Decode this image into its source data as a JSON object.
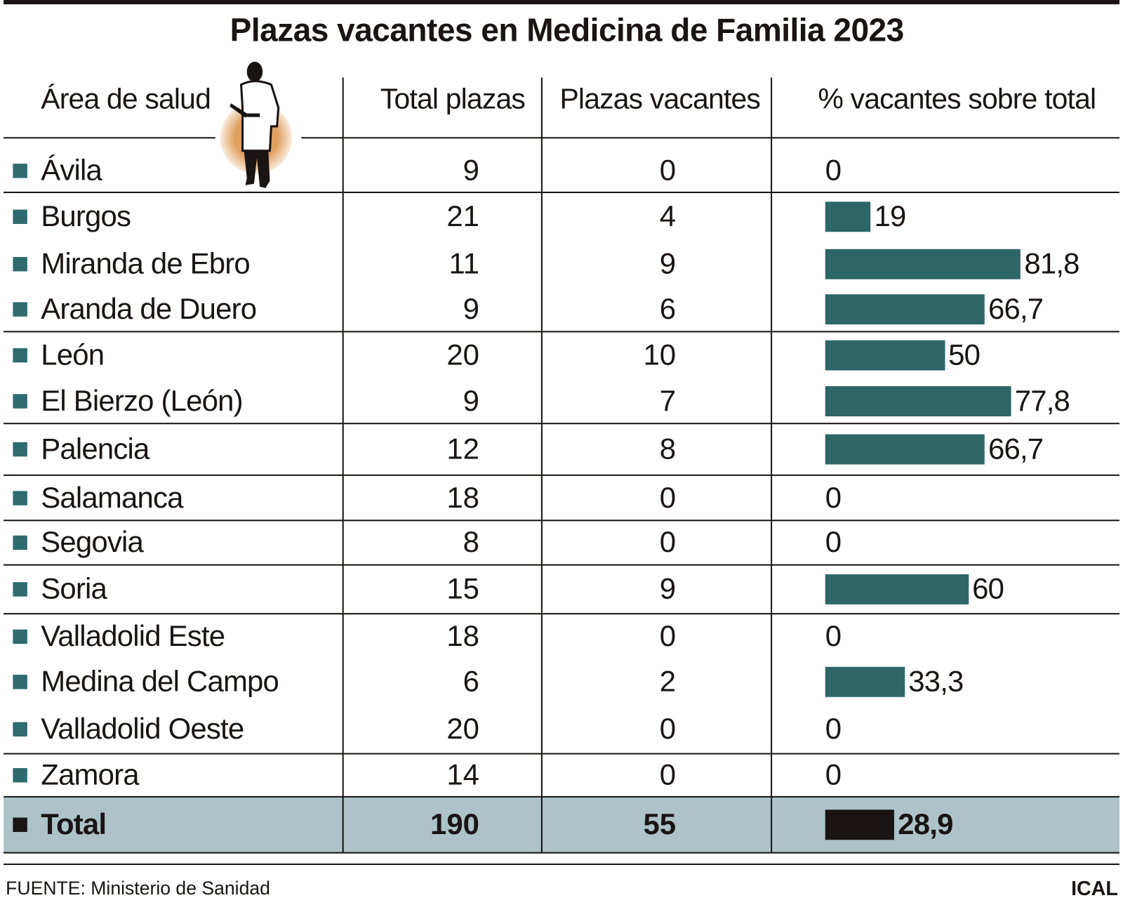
{
  "title": "Plazas vacantes en Medicina de Familia 2023",
  "colors": {
    "bar": "#2e6666",
    "total_bar": "#1a1414",
    "total_row_bg": "#adc3c8",
    "figure_circle": "#e0a060"
  },
  "icons": {
    "figure": "doctor-silhouette-icon",
    "row_marker": "square-bullet-icon"
  },
  "chart_data": {
    "type": "table",
    "title": "Plazas vacantes en Medicina de Familia 2023",
    "columns": [
      "Área de salud",
      "Total plazas",
      "Plazas vacantes",
      "% vacantes sobre total"
    ],
    "rows": [
      {
        "area": "Ávila",
        "total": "9",
        "vacantes": "0",
        "pct": 0,
        "pct_label": "0"
      },
      {
        "area": "Burgos",
        "total": "21",
        "vacantes": "4",
        "pct": 19,
        "pct_label": "19"
      },
      {
        "area": "Miranda de Ebro",
        "total": "11",
        "vacantes": "9",
        "pct": 81.8,
        "pct_label": "81,8"
      },
      {
        "area": "Aranda de Duero",
        "total": "9",
        "vacantes": "6",
        "pct": 66.7,
        "pct_label": "66,7"
      },
      {
        "area": "León",
        "total": "20",
        "vacantes": "10",
        "pct": 50,
        "pct_label": "50"
      },
      {
        "area": "El Bierzo (León)",
        "total": "9",
        "vacantes": "7",
        "pct": 77.8,
        "pct_label": "77,8"
      },
      {
        "area": "Palencia",
        "total": "12",
        "vacantes": "8",
        "pct": 66.7,
        "pct_label": "66,7"
      },
      {
        "area": "Salamanca",
        "total": "18",
        "vacantes": "0",
        "pct": 0,
        "pct_label": "0"
      },
      {
        "area": "Segovia",
        "total": "8",
        "vacantes": "0",
        "pct": 0,
        "pct_label": "0"
      },
      {
        "area": "Soria",
        "total": "15",
        "vacantes": "9",
        "pct": 60,
        "pct_label": "60"
      },
      {
        "area": "Valladolid Este",
        "total": "18",
        "vacantes": "0",
        "pct": 0,
        "pct_label": "0"
      },
      {
        "area": "Medina del Campo",
        "total": "6",
        "vacantes": "2",
        "pct": 33.3,
        "pct_label": "33,3"
      },
      {
        "area": "Valladolid Oeste",
        "total": "20",
        "vacantes": "0",
        "pct": 0,
        "pct_label": "0"
      },
      {
        "area": "Zamora",
        "total": "14",
        "vacantes": "0",
        "pct": 0,
        "pct_label": "0"
      }
    ],
    "total_row": {
      "area": "Total",
      "total": "190",
      "vacantes": "55",
      "pct": 28.9,
      "pct_label": "28,9"
    }
  },
  "footer": {
    "source": "FUENTE: Ministerio de Sanidad",
    "brand": "ICAL"
  }
}
